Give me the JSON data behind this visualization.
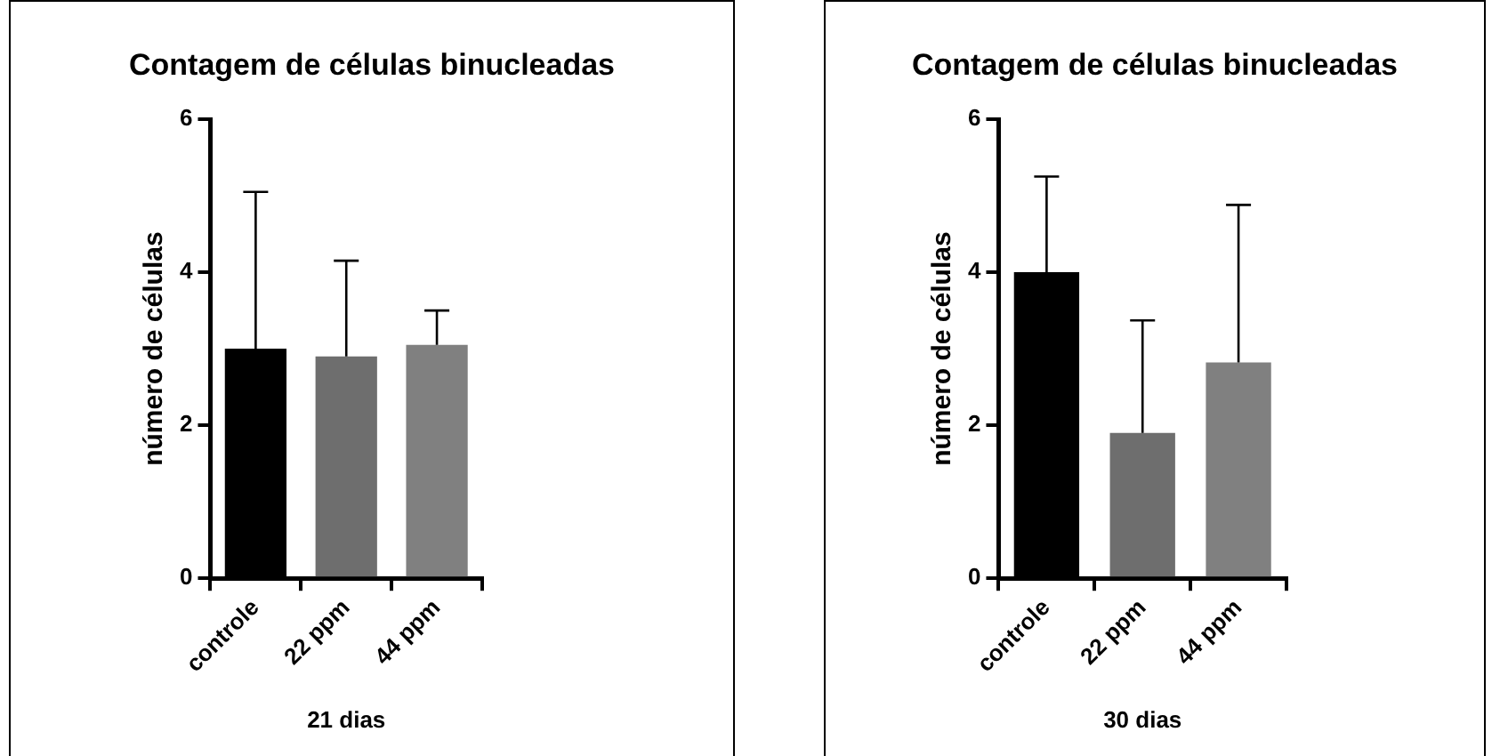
{
  "chart_data": [
    {
      "type": "bar",
      "title": "Contagem de células binucleadas",
      "xlabel": "21 dias",
      "ylabel": "número de células",
      "categories": [
        "controle",
        "22 ppm",
        "44 ppm"
      ],
      "values": [
        3.0,
        2.9,
        3.05
      ],
      "colors": [
        "#000000",
        "#6e6e6e",
        "#808080"
      ],
      "errors": [
        [
          3.0,
          5.05
        ],
        [
          2.9,
          4.15
        ],
        [
          3.05,
          3.5
        ]
      ],
      "ylim": [
        0,
        6
      ],
      "yticks": [
        0,
        2,
        4,
        6
      ],
      "grid": false,
      "legend": false
    },
    {
      "type": "bar",
      "title": "Contagem de células binucleadas",
      "xlabel": "30 dias",
      "ylabel": "número de células",
      "categories": [
        "controle",
        "22 ppm",
        "44 ppm"
      ],
      "values": [
        4.0,
        1.9,
        2.82
      ],
      "colors": [
        "#000000",
        "#6e6e6e",
        "#808080"
      ],
      "errors": [
        [
          4.0,
          5.25
        ],
        [
          1.9,
          3.37
        ],
        [
          2.82,
          4.88
        ]
      ],
      "ylim": [
        0,
        6
      ],
      "yticks": [
        0,
        2,
        4,
        6
      ],
      "grid": false,
      "legend": false
    }
  ]
}
